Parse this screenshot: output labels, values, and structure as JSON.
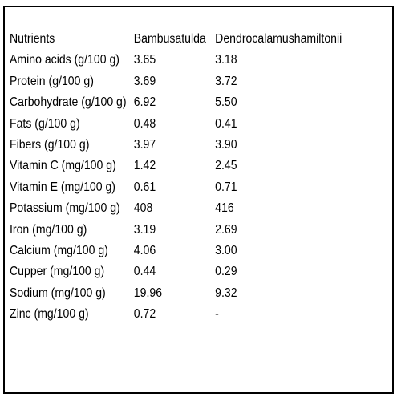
{
  "table": {
    "headers": [
      "Nutrients",
      "Bambusatulda",
      "Dendrocalamushamiltonii"
    ],
    "rows": [
      {
        "nutrient": "Amino acids (g/100 g)",
        "bambusatulda": "3.65",
        "dendrocalamushamiltonii": "3.18"
      },
      {
        "nutrient": "Protein (g/100 g)",
        "bambusatulda": "3.69",
        "dendrocalamushamiltonii": "3.72"
      },
      {
        "nutrient": "Carbohydrate (g/100 g)",
        "bambusatulda": "6.92",
        "dendrocalamushamiltonii": "5.50"
      },
      {
        "nutrient": "Fats  (g/100 g)",
        "bambusatulda": "0.48",
        "dendrocalamushamiltonii": "0.41"
      },
      {
        "nutrient": "Fibers (g/100 g)",
        "bambusatulda": "3.97",
        "dendrocalamushamiltonii": "3.90"
      },
      {
        "nutrient": "Vitamin C (mg/100 g)",
        "bambusatulda": "1.42",
        "dendrocalamushamiltonii": "2.45"
      },
      {
        "nutrient": "Vitamin E (mg/100 g)",
        "bambusatulda": "0.61",
        "dendrocalamushamiltonii": "0.71"
      },
      {
        "nutrient": "Potassium (mg/100 g)",
        "bambusatulda": "408",
        "dendrocalamushamiltonii": "416"
      },
      {
        "nutrient": "Iron (mg/100 g)",
        "bambusatulda": "3.19",
        "dendrocalamushamiltonii": "2.69"
      },
      {
        "nutrient": "Calcium (mg/100 g)",
        "bambusatulda": "4.06",
        "dendrocalamushamiltonii": "3.00"
      },
      {
        "nutrient": "Cupper (mg/100 g)",
        "bambusatulda": "0.44",
        "dendrocalamushamiltonii": "0.29"
      },
      {
        "nutrient": "Sodium (mg/100 g)",
        "bambusatulda": "19.96",
        "dendrocalamushamiltonii": "9.32"
      },
      {
        "nutrient": "Zinc (mg/100 g)",
        "bambusatulda": "0.72",
        "dendrocalamushamiltonii": "-"
      }
    ]
  }
}
